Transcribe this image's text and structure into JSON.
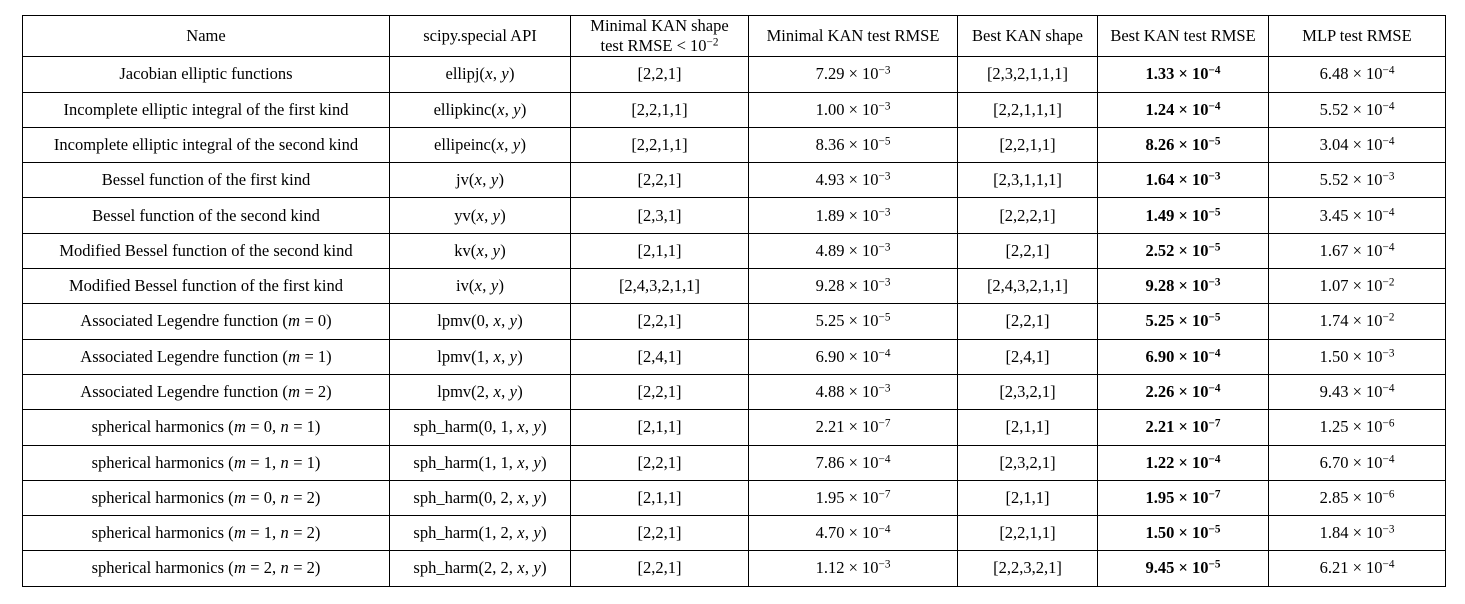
{
  "colors": {
    "background": "#ffffff",
    "text": "#000000",
    "border": "#000000"
  },
  "table": {
    "columns": [
      {
        "id": "name",
        "lines": [
          "Name"
        ]
      },
      {
        "id": "api",
        "lines": [
          "scipy.special API"
        ]
      },
      {
        "id": "minimal_shape",
        "lines": [
          "Minimal KAN shape",
          "test RMSE < 10^{-2}"
        ]
      },
      {
        "id": "minimal_rmse",
        "lines": [
          "Minimal KAN test RMSE"
        ]
      },
      {
        "id": "best_shape",
        "lines": [
          "Best KAN shape"
        ]
      },
      {
        "id": "best_rmse",
        "lines": [
          "Best KAN test RMSE"
        ]
      },
      {
        "id": "mlp_rmse",
        "lines": [
          "MLP test RMSE"
        ]
      }
    ],
    "rows": [
      {
        "name": "Jacobian elliptic functions",
        "api": "ellipj$(x, y)$",
        "minimal_shape": "[2,2,1]",
        "minimal_rmse": "7.29e-3",
        "best_shape": "[2,3,2,1,1,1]",
        "best_rmse": "1.33e-4",
        "mlp_rmse": "6.48e-4"
      },
      {
        "name": "Incomplete elliptic integral of the first kind",
        "api": "ellipkinc$(x, y)$",
        "minimal_shape": "[2,2,1,1]",
        "minimal_rmse": "1.00e-3",
        "best_shape": "[2,2,1,1,1]",
        "best_rmse": "1.24e-4",
        "mlp_rmse": "5.52e-4"
      },
      {
        "name": "Incomplete elliptic integral of the second kind",
        "api": "ellipeinc$(x, y)$",
        "minimal_shape": "[2,2,1,1]",
        "minimal_rmse": "8.36e-5",
        "best_shape": "[2,2,1,1]",
        "best_rmse": "8.26e-5",
        "mlp_rmse": "3.04e-4"
      },
      {
        "name": "Bessel function of the first kind",
        "api": "jv$(x, y)$",
        "minimal_shape": "[2,2,1]",
        "minimal_rmse": "4.93e-3",
        "best_shape": "[2,3,1,1,1]",
        "best_rmse": "1.64e-3",
        "mlp_rmse": "5.52e-3"
      },
      {
        "name": "Bessel function of the second kind",
        "api": "yv$(x, y)$",
        "minimal_shape": "[2,3,1]",
        "minimal_rmse": "1.89e-3",
        "best_shape": "[2,2,2,1]",
        "best_rmse": "1.49e-5",
        "mlp_rmse": "3.45e-4"
      },
      {
        "name": "Modified Bessel function of the second kind",
        "api": "kv$(x, y)$",
        "minimal_shape": "[2,1,1]",
        "minimal_rmse": "4.89e-3",
        "best_shape": "[2,2,1]",
        "best_rmse": "2.52e-5",
        "mlp_rmse": "1.67e-4"
      },
      {
        "name": "Modified Bessel function of the first kind",
        "api": "iv$(x, y)$",
        "minimal_shape": "[2,4,3,2,1,1]",
        "minimal_rmse": "9.28e-3",
        "best_shape": "[2,4,3,2,1,1]",
        "best_rmse": "9.28e-3",
        "mlp_rmse": "1.07e-2"
      },
      {
        "name": "Associated Legendre function $(m = 0)$",
        "api": "lpmv$(0, x, y)$",
        "minimal_shape": "[2,2,1]",
        "minimal_rmse": "5.25e-5",
        "best_shape": "[2,2,1]",
        "best_rmse": "5.25e-5",
        "mlp_rmse": "1.74e-2"
      },
      {
        "name": "Associated Legendre function $(m = 1)$",
        "api": "lpmv$(1, x, y)$",
        "minimal_shape": "[2,4,1]",
        "minimal_rmse": "6.90e-4",
        "best_shape": "[2,4,1]",
        "best_rmse": "6.90e-4",
        "mlp_rmse": "1.50e-3"
      },
      {
        "name": "Associated Legendre function $(m = 2)$",
        "api": "lpmv$(2, x, y)$",
        "minimal_shape": "[2,2,1]",
        "minimal_rmse": "4.88e-3",
        "best_shape": "[2,3,2,1]",
        "best_rmse": "2.26e-4",
        "mlp_rmse": "9.43e-4"
      },
      {
        "name": "spherical harmonics $(m = 0, n = 1)$",
        "api": "sph_harm$(0, 1, x, y)$",
        "minimal_shape": "[2,1,1]",
        "minimal_rmse": "2.21e-7",
        "best_shape": "[2,1,1]",
        "best_rmse": "2.21e-7",
        "mlp_rmse": "1.25e-6"
      },
      {
        "name": "spherical harmonics $(m = 1, n = 1)$",
        "api": "sph_harm$(1, 1, x, y)$",
        "minimal_shape": "[2,2,1]",
        "minimal_rmse": "7.86e-4",
        "best_shape": "[2,3,2,1]",
        "best_rmse": "1.22e-4",
        "mlp_rmse": "6.70e-4"
      },
      {
        "name": "spherical harmonics $(m = 0, n = 2)$",
        "api": "sph_harm$(0, 2, x, y)$",
        "minimal_shape": "[2,1,1]",
        "minimal_rmse": "1.95e-7",
        "best_shape": "[2,1,1]",
        "best_rmse": "1.95e-7",
        "mlp_rmse": "2.85e-6"
      },
      {
        "name": "spherical harmonics $(m = 1, n = 2)$",
        "api": "sph_harm$(1, 2, x, y)$",
        "minimal_shape": "[2,2,1]",
        "minimal_rmse": "4.70e-4",
        "best_shape": "[2,2,1,1]",
        "best_rmse": "1.50e-5",
        "mlp_rmse": "1.84e-3"
      },
      {
        "name": "spherical harmonics $(m = 2, n = 2)$",
        "api": "sph_harm$(2, 2, x, y)$",
        "minimal_shape": "[2,2,1]",
        "minimal_rmse": "1.12e-3",
        "best_shape": "[2,2,3,2,1]",
        "best_rmse": "9.45e-5",
        "mlp_rmse": "6.21e-4"
      }
    ]
  }
}
